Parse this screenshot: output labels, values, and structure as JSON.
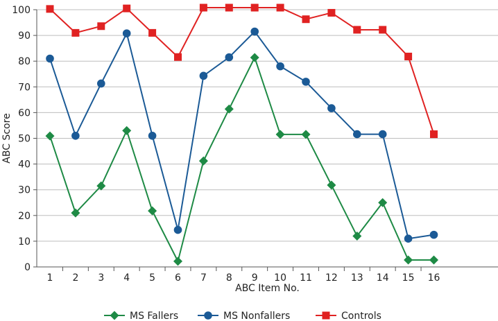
{
  "chart_data": {
    "type": "line",
    "title": "",
    "xlabel": "ABC Item No.",
    "ylabel": "ABC Score",
    "x": [
      1,
      2,
      3,
      4,
      5,
      6,
      7,
      8,
      9,
      10,
      11,
      12,
      13,
      14,
      15,
      16
    ],
    "ylim": [
      0,
      100
    ],
    "yticks": [
      0,
      10,
      20,
      30,
      40,
      50,
      60,
      70,
      80,
      90,
      100
    ],
    "grid": true,
    "legend_position": "bottom",
    "series": [
      {
        "name": "MS Fallers",
        "color": "#1e8a45",
        "marker": "diamond",
        "values": [
          50.9,
          21.0,
          31.5,
          53.0,
          21.8,
          2.2,
          41.2,
          61.4,
          81.4,
          51.5,
          51.5,
          31.8,
          12.0,
          25.0,
          2.7,
          2.7
        ]
      },
      {
        "name": "MS Nonfallers",
        "color": "#1b5a96",
        "marker": "circle",
        "values": [
          81.0,
          51.0,
          71.3,
          90.8,
          51.0,
          14.4,
          74.3,
          81.5,
          91.5,
          78.0,
          72.0,
          61.7,
          51.6,
          51.6,
          11.0,
          12.5
        ]
      },
      {
        "name": "Controls",
        "color": "#e02222",
        "marker": "square",
        "values": [
          100.3,
          91.0,
          93.6,
          100.5,
          91.0,
          81.6,
          100.8,
          100.8,
          100.8,
          100.8,
          96.3,
          98.8,
          92.2,
          92.2,
          81.8,
          51.6
        ]
      }
    ]
  }
}
